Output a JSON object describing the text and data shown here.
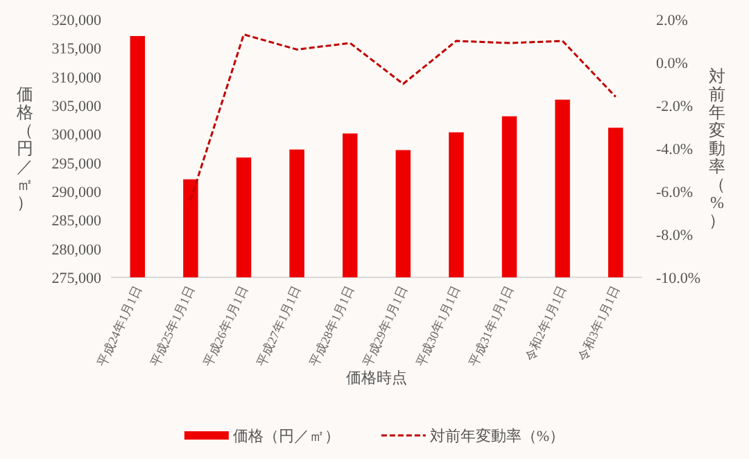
{
  "chart_data": {
    "type": "bar",
    "xlabel": "価格時点",
    "ylabel": "価格（円／㎡）",
    "y2label": "対前年変動率（%）",
    "legend": "bottom",
    "grid": false,
    "categories": [
      "平成24年1月1日",
      "平成25年1月1日",
      "平成26年1月1日",
      "平成27年1月1日",
      "平成28年1月1日",
      "平成29年1月1日",
      "平成30年1月1日",
      "平成31年1月1日",
      "令和2年1月1日",
      "令和3年1月1日"
    ],
    "series": [
      {
        "name": "価格（円／㎡）",
        "color": "#ee0000",
        "values": [
          317100,
          292100,
          295900,
          297300,
          300100,
          297200,
          300300,
          303100,
          306000,
          301100
        ]
      },
      {
        "name": "対前年変動率（%）",
        "type": "line",
        "axis": "y2",
        "line_style": "dashed",
        "color": "#c00000",
        "values": [
          null,
          -6.4,
          1.3,
          0.6,
          0.9,
          -1.0,
          1.0,
          0.9,
          1.0,
          -1.6
        ]
      }
    ],
    "ylim": [
      275000,
      320000
    ],
    "yticks": [
      {
        "value": 275000,
        "label": "275,000"
      },
      {
        "value": 280000,
        "label": "280,000"
      },
      {
        "value": 285000,
        "label": "285,000"
      },
      {
        "value": 290000,
        "label": "290,000"
      },
      {
        "value": 295000,
        "label": "295,000"
      },
      {
        "value": 300000,
        "label": "300,000"
      },
      {
        "value": 305000,
        "label": "305,000"
      },
      {
        "value": 310000,
        "label": "310,000"
      },
      {
        "value": 315000,
        "label": "315,000"
      },
      {
        "value": 320000,
        "label": "320,000"
      }
    ],
    "y2lim": [
      -10,
      2
    ],
    "y2ticks": [
      {
        "value": -10,
        "label": "-10.0%"
      },
      {
        "value": -8,
        "label": "-8.0%"
      },
      {
        "value": -6,
        "label": "-6.0%"
      },
      {
        "value": -4,
        "label": "-4.0%"
      },
      {
        "value": -2,
        "label": "-2.0%"
      },
      {
        "value": 0,
        "label": "0.0%"
      },
      {
        "value": 2,
        "label": "2.0%"
      }
    ]
  }
}
